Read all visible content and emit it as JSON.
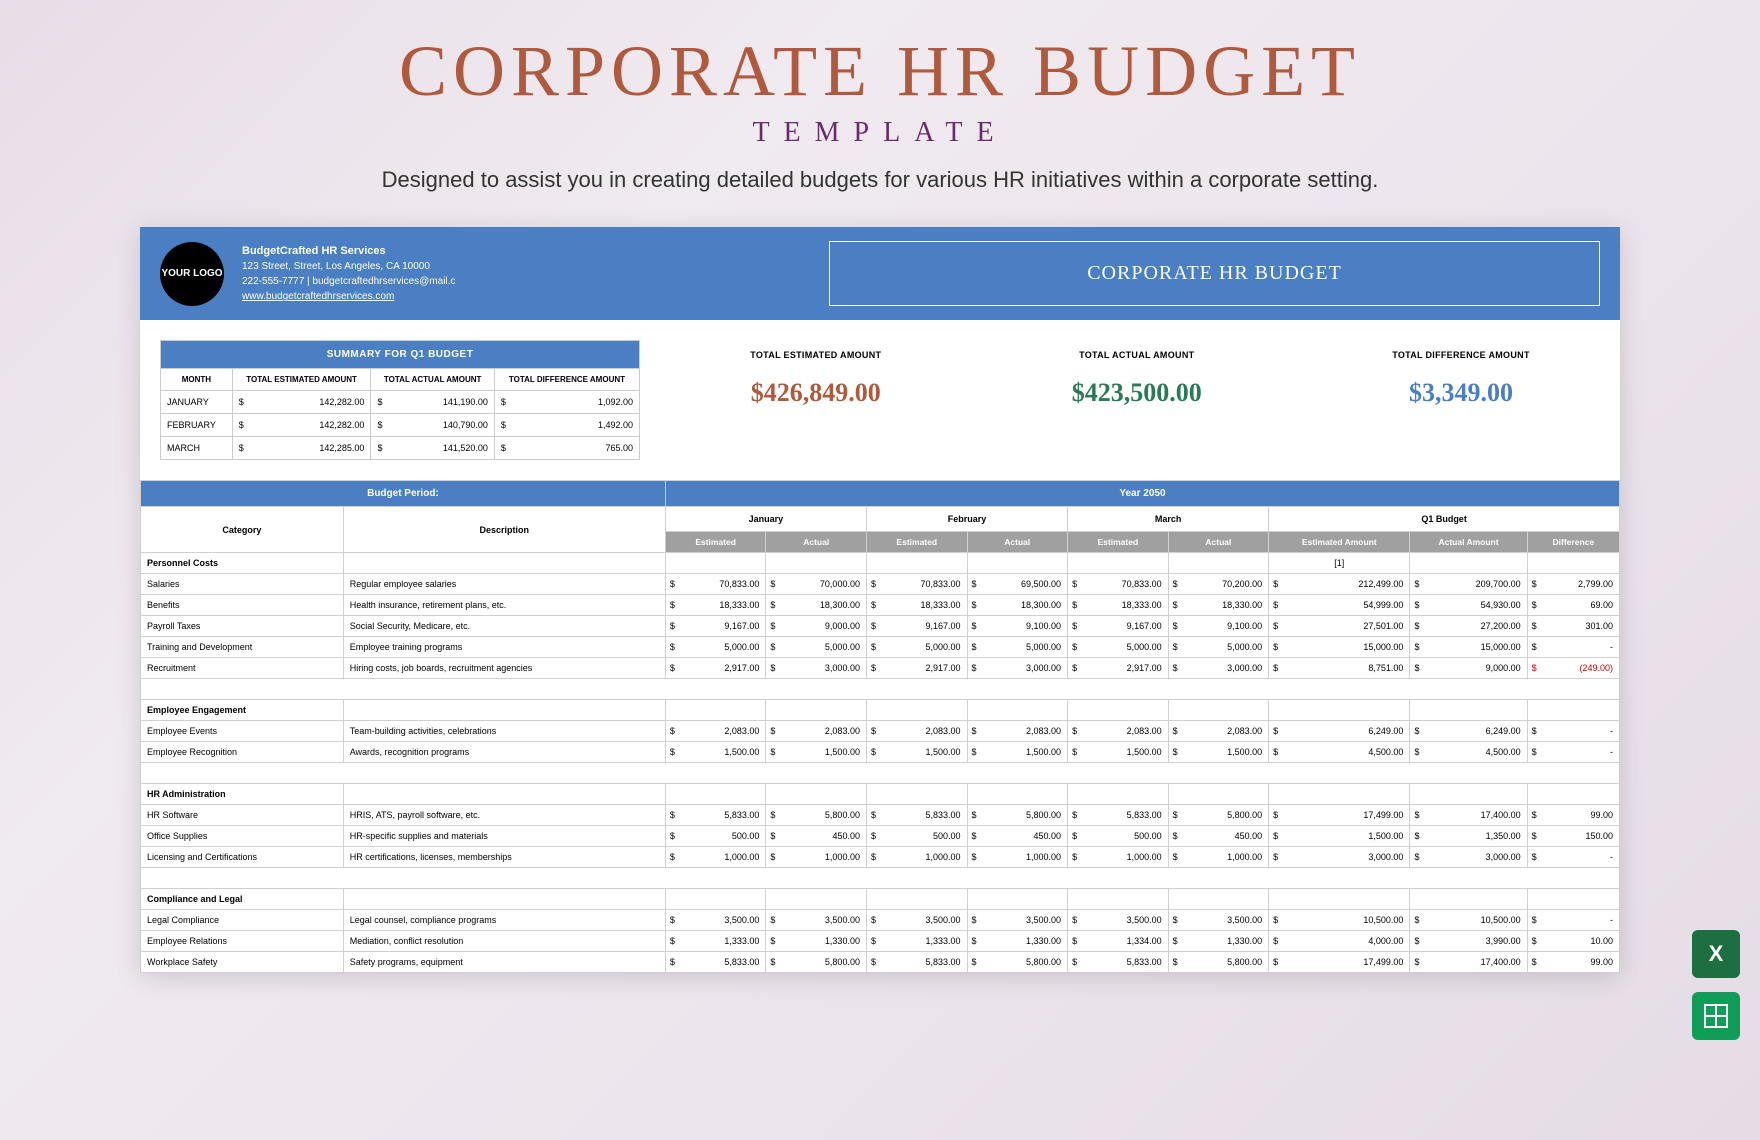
{
  "header": {
    "title": "CORPORATE HR BUDGET",
    "subtitle": "TEMPLATE",
    "description": "Designed to assist you in creating detailed budgets for various HR initiatives within a corporate setting."
  },
  "spreadsheet": {
    "logo_text": "YOUR LOGO",
    "company": {
      "name": "BudgetCrafted HR Services",
      "address": "123 Street, Street, Los Angeles, CA 10000",
      "contact": "222-555-7777 | budgetcraftedhrservices@mail.c",
      "website": "www.budgetcraftedhrservices.com"
    },
    "doc_title": "CORPORATE HR BUDGET",
    "summary": {
      "title": "SUMMARY FOR Q1 BUDGET",
      "columns": [
        "MONTH",
        "TOTAL ESTIMATED AMOUNT",
        "TOTAL ACTUAL AMOUNT",
        "TOTAL DIFFERENCE AMOUNT"
      ],
      "rows": [
        {
          "month": "JANUARY",
          "est": "142,282.00",
          "act": "141,190.00",
          "diff": "1,092.00"
        },
        {
          "month": "FEBRUARY",
          "est": "142,282.00",
          "act": "140,790.00",
          "diff": "1,492.00"
        },
        {
          "month": "MARCH",
          "est": "142,285.00",
          "act": "141,520.00",
          "diff": "765.00"
        }
      ]
    },
    "totals": {
      "est_label": "TOTAL ESTIMATED AMOUNT",
      "est_value": "$426,849.00",
      "act_label": "TOTAL ACTUAL AMOUNT",
      "act_value": "$423,500.00",
      "diff_label": "TOTAL DIFFERENCE AMOUNT",
      "diff_value": "$3,349.00"
    },
    "budget": {
      "period_label": "Budget Period:",
      "period_value": "Year 2050",
      "columns": [
        "Category",
        "Description",
        "January",
        "February",
        "March",
        "Q1 Budget"
      ],
      "subcols": [
        "Estimated",
        "Actual",
        "Estimated",
        "Actual",
        "Estimated",
        "Actual",
        "Estimated Amount",
        "Actual Amount",
        "Difference"
      ],
      "note": "[1]",
      "sections": [
        {
          "name": "Personnel Costs",
          "rows": [
            {
              "cat": "Salaries",
              "desc": "Regular employee salaries",
              "jan_e": "70,833.00",
              "jan_a": "70,000.00",
              "feb_e": "70,833.00",
              "feb_a": "69,500.00",
              "mar_e": "70,833.00",
              "mar_a": "70,200.00",
              "q_e": "212,499.00",
              "q_a": "209,700.00",
              "q_d": "2,799.00"
            },
            {
              "cat": "Benefits",
              "desc": "Health insurance, retirement plans, etc.",
              "jan_e": "18,333.00",
              "jan_a": "18,300.00",
              "feb_e": "18,333.00",
              "feb_a": "18,300.00",
              "mar_e": "18,333.00",
              "mar_a": "18,330.00",
              "q_e": "54,999.00",
              "q_a": "54,930.00",
              "q_d": "69.00"
            },
            {
              "cat": "Payroll Taxes",
              "desc": "Social Security, Medicare, etc.",
              "jan_e": "9,167.00",
              "jan_a": "9,000.00",
              "feb_e": "9,167.00",
              "feb_a": "9,100.00",
              "mar_e": "9,167.00",
              "mar_a": "9,100.00",
              "q_e": "27,501.00",
              "q_a": "27,200.00",
              "q_d": "301.00"
            },
            {
              "cat": "Training and Development",
              "desc": "Employee training programs",
              "jan_e": "5,000.00",
              "jan_a": "5,000.00",
              "feb_e": "5,000.00",
              "feb_a": "5,000.00",
              "mar_e": "5,000.00",
              "mar_a": "5,000.00",
              "q_e": "15,000.00",
              "q_a": "15,000.00",
              "q_d": "-"
            },
            {
              "cat": "Recruitment",
              "desc": "Hiring costs, job boards, recruitment agencies",
              "jan_e": "2,917.00",
              "jan_a": "3,000.00",
              "feb_e": "2,917.00",
              "feb_a": "3,000.00",
              "mar_e": "2,917.00",
              "mar_a": "3,000.00",
              "q_e": "8,751.00",
              "q_a": "9,000.00",
              "q_d": "(249.00)",
              "neg": true
            }
          ]
        },
        {
          "name": "Employee Engagement",
          "rows": [
            {
              "cat": "Employee Events",
              "desc": "Team-building activities, celebrations",
              "jan_e": "2,083.00",
              "jan_a": "2,083.00",
              "feb_e": "2,083.00",
              "feb_a": "2,083.00",
              "mar_e": "2,083.00",
              "mar_a": "2,083.00",
              "q_e": "6,249.00",
              "q_a": "6,249.00",
              "q_d": "-"
            },
            {
              "cat": "Employee Recognition",
              "desc": "Awards, recognition programs",
              "jan_e": "1,500.00",
              "jan_a": "1,500.00",
              "feb_e": "1,500.00",
              "feb_a": "1,500.00",
              "mar_e": "1,500.00",
              "mar_a": "1,500.00",
              "q_e": "4,500.00",
              "q_a": "4,500.00",
              "q_d": "-"
            }
          ]
        },
        {
          "name": "HR Administration",
          "rows": [
            {
              "cat": "HR Software",
              "desc": "HRIS, ATS, payroll software, etc.",
              "jan_e": "5,833.00",
              "jan_a": "5,800.00",
              "feb_e": "5,833.00",
              "feb_a": "5,800.00",
              "mar_e": "5,833.00",
              "mar_a": "5,800.00",
              "q_e": "17,499.00",
              "q_a": "17,400.00",
              "q_d": "99.00"
            },
            {
              "cat": "Office Supplies",
              "desc": "HR-specific supplies and materials",
              "jan_e": "500.00",
              "jan_a": "450.00",
              "feb_e": "500.00",
              "feb_a": "450.00",
              "mar_e": "500.00",
              "mar_a": "450.00",
              "q_e": "1,500.00",
              "q_a": "1,350.00",
              "q_d": "150.00"
            },
            {
              "cat": "Licensing and Certifications",
              "desc": "HR certifications, licenses, memberships",
              "jan_e": "1,000.00",
              "jan_a": "1,000.00",
              "feb_e": "1,000.00",
              "feb_a": "1,000.00",
              "mar_e": "1,000.00",
              "mar_a": "1,000.00",
              "q_e": "3,000.00",
              "q_a": "3,000.00",
              "q_d": "-"
            }
          ]
        },
        {
          "name": "Compliance and Legal",
          "rows": [
            {
              "cat": "Legal Compliance",
              "desc": "Legal counsel, compliance programs",
              "jan_e": "3,500.00",
              "jan_a": "3,500.00",
              "feb_e": "3,500.00",
              "feb_a": "3,500.00",
              "mar_e": "3,500.00",
              "mar_a": "3,500.00",
              "q_e": "10,500.00",
              "q_a": "10,500.00",
              "q_d": "-"
            },
            {
              "cat": "Employee Relations",
              "desc": "Mediation, conflict resolution",
              "jan_e": "1,333.00",
              "jan_a": "1,330.00",
              "feb_e": "1,333.00",
              "feb_a": "1,330.00",
              "mar_e": "1,334.00",
              "mar_a": "1,330.00",
              "q_e": "4,000.00",
              "q_a": "3,990.00",
              "q_d": "10.00"
            },
            {
              "cat": "Workplace Safety",
              "desc": "Safety programs, equipment",
              "jan_e": "5,833.00",
              "jan_a": "5,800.00",
              "feb_e": "5,833.00",
              "feb_a": "5,800.00",
              "mar_e": "5,833.00",
              "mar_a": "5,800.00",
              "q_e": "17,499.00",
              "q_a": "17,400.00",
              "q_d": "99.00"
            }
          ]
        }
      ]
    }
  },
  "colors": {
    "brand_blue": "#4a7fc4",
    "title_rust": "#b0593c",
    "subtitle_purple": "#6b2a6b",
    "total_green": "#2a7a5a",
    "subheader_gray": "#a0a0a0",
    "negative": "#cc0000"
  }
}
